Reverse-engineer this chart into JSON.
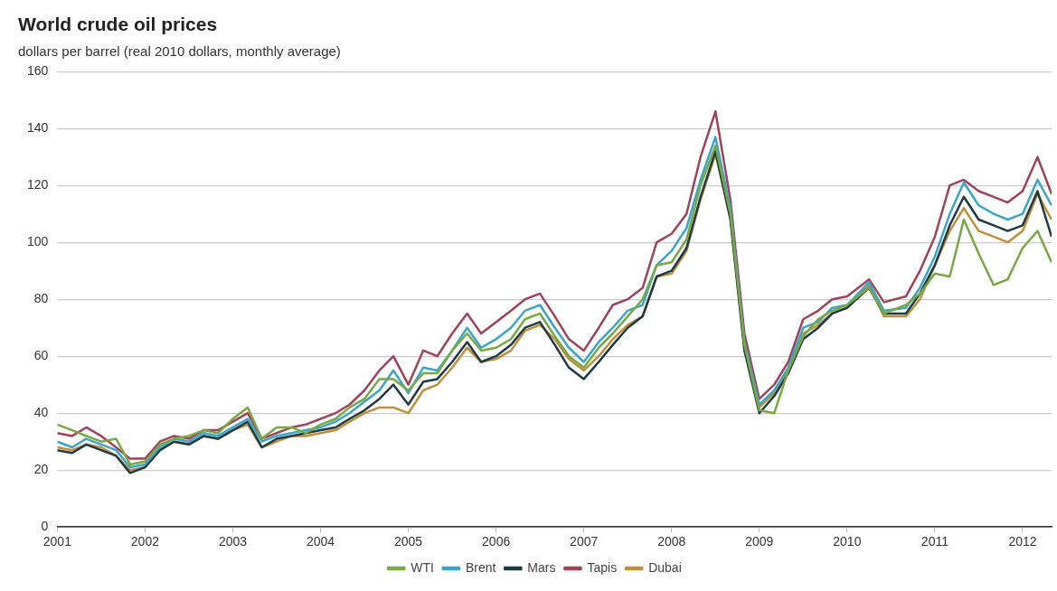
{
  "chart_data": {
    "type": "line",
    "title": "World crude oil prices",
    "subtitle": "dollars per barrel (real 2010 dollars, monthly average)",
    "x": [
      2001,
      2001.17,
      2001.33,
      2001.5,
      2001.67,
      2001.83,
      2002,
      2002.17,
      2002.33,
      2002.5,
      2002.67,
      2002.83,
      2003,
      2003.17,
      2003.33,
      2003.5,
      2003.67,
      2003.83,
      2004,
      2004.17,
      2004.33,
      2004.5,
      2004.67,
      2004.83,
      2005,
      2005.17,
      2005.33,
      2005.5,
      2005.67,
      2005.83,
      2006,
      2006.17,
      2006.33,
      2006.5,
      2006.67,
      2006.83,
      2007,
      2007.17,
      2007.33,
      2007.5,
      2007.67,
      2007.83,
      2008,
      2008.17,
      2008.33,
      2008.5,
      2008.67,
      2008.83,
      2009,
      2009.17,
      2009.33,
      2009.5,
      2009.67,
      2009.83,
      2010,
      2010.25,
      2010.42,
      2010.67,
      2010.83,
      2011,
      2011.17,
      2011.33,
      2011.5,
      2011.67,
      2011.83,
      2012,
      2012.17,
      2012.33
    ],
    "series": [
      {
        "name": "WTI",
        "color": "#77a844",
        "values": [
          36,
          34,
          32,
          30,
          31,
          22,
          23,
          29,
          31,
          32,
          34,
          33,
          38,
          42,
          31,
          35,
          35,
          33,
          36,
          38,
          42,
          45,
          52,
          52,
          48,
          54,
          54,
          62,
          68,
          62,
          63,
          66,
          73,
          75,
          67,
          60,
          56,
          63,
          68,
          74,
          80,
          92,
          93,
          101,
          120,
          134,
          110,
          64,
          41,
          40,
          55,
          67,
          73,
          76,
          78,
          84,
          75,
          78,
          82,
          89,
          88,
          108,
          96,
          85,
          87,
          98,
          104,
          93
        ]
      },
      {
        "name": "Brent",
        "color": "#3aa5c8",
        "values": [
          30,
          28,
          31,
          29,
          27,
          21,
          22,
          28,
          31,
          30,
          33,
          32,
          35,
          38,
          30,
          32,
          33,
          34,
          35,
          37,
          40,
          44,
          48,
          55,
          47,
          56,
          55,
          62,
          70,
          63,
          66,
          70,
          76,
          78,
          70,
          63,
          58,
          65,
          70,
          76,
          78,
          92,
          97,
          105,
          122,
          137,
          112,
          65,
          43,
          48,
          56,
          70,
          72,
          77,
          78,
          86,
          76,
          77,
          84,
          95,
          110,
          121,
          113,
          110,
          108,
          110,
          122,
          113
        ]
      },
      {
        "name": "Mars",
        "color": "#1f3a44",
        "values": [
          27,
          26,
          29,
          27,
          25,
          19,
          21,
          27,
          30,
          29,
          32,
          31,
          34,
          37,
          28,
          31,
          32,
          33,
          34,
          35,
          38,
          41,
          45,
          50,
          43,
          51,
          52,
          58,
          65,
          58,
          60,
          64,
          70,
          72,
          64,
          56,
          52,
          58,
          64,
          70,
          74,
          88,
          90,
          98,
          116,
          132,
          108,
          62,
          40,
          46,
          54,
          66,
          70,
          75,
          77,
          84,
          75,
          75,
          82,
          92,
          106,
          116,
          108,
          106,
          104,
          106,
          118,
          102
        ]
      },
      {
        "name": "Tapis",
        "color": "#a0435a",
        "values": [
          33,
          32,
          35,
          32,
          28,
          24,
          24,
          30,
          32,
          31,
          34,
          34,
          37,
          40,
          31,
          33,
          35,
          36,
          38,
          40,
          43,
          48,
          55,
          60,
          50,
          62,
          60,
          68,
          75,
          68,
          72,
          76,
          80,
          82,
          74,
          66,
          62,
          70,
          78,
          80,
          84,
          100,
          103,
          110,
          130,
          146,
          115,
          68,
          45,
          50,
          58,
          73,
          76,
          80,
          81,
          87,
          79,
          81,
          90,
          102,
          120,
          122,
          118,
          116,
          114,
          118,
          130,
          117
        ]
      },
      {
        "name": "Dubai",
        "color": "#c08f3a",
        "values": [
          28,
          27,
          29,
          28,
          25,
          20,
          21,
          27,
          30,
          29,
          32,
          31,
          34,
          36,
          28,
          30,
          32,
          32,
          33,
          34,
          37,
          40,
          42,
          42,
          40,
          48,
          50,
          56,
          63,
          58,
          59,
          62,
          69,
          71,
          66,
          59,
          55,
          60,
          66,
          71,
          74,
          88,
          89,
          97,
          115,
          131,
          109,
          63,
          42,
          47,
          55,
          68,
          71,
          75,
          77,
          85,
          74,
          74,
          80,
          92,
          104,
          112,
          104,
          102,
          100,
          104,
          117,
          108
        ]
      }
    ],
    "xlim": [
      2001,
      2012.33
    ],
    "xticks": [
      2001,
      2002,
      2003,
      2004,
      2005,
      2006,
      2007,
      2008,
      2009,
      2010,
      2011,
      2012
    ],
    "ylim": [
      0,
      160
    ],
    "yticks": [
      0,
      20,
      40,
      60,
      80,
      100,
      120,
      140,
      160
    ],
    "grid": "y",
    "legend": "bottom",
    "marker": "none"
  }
}
